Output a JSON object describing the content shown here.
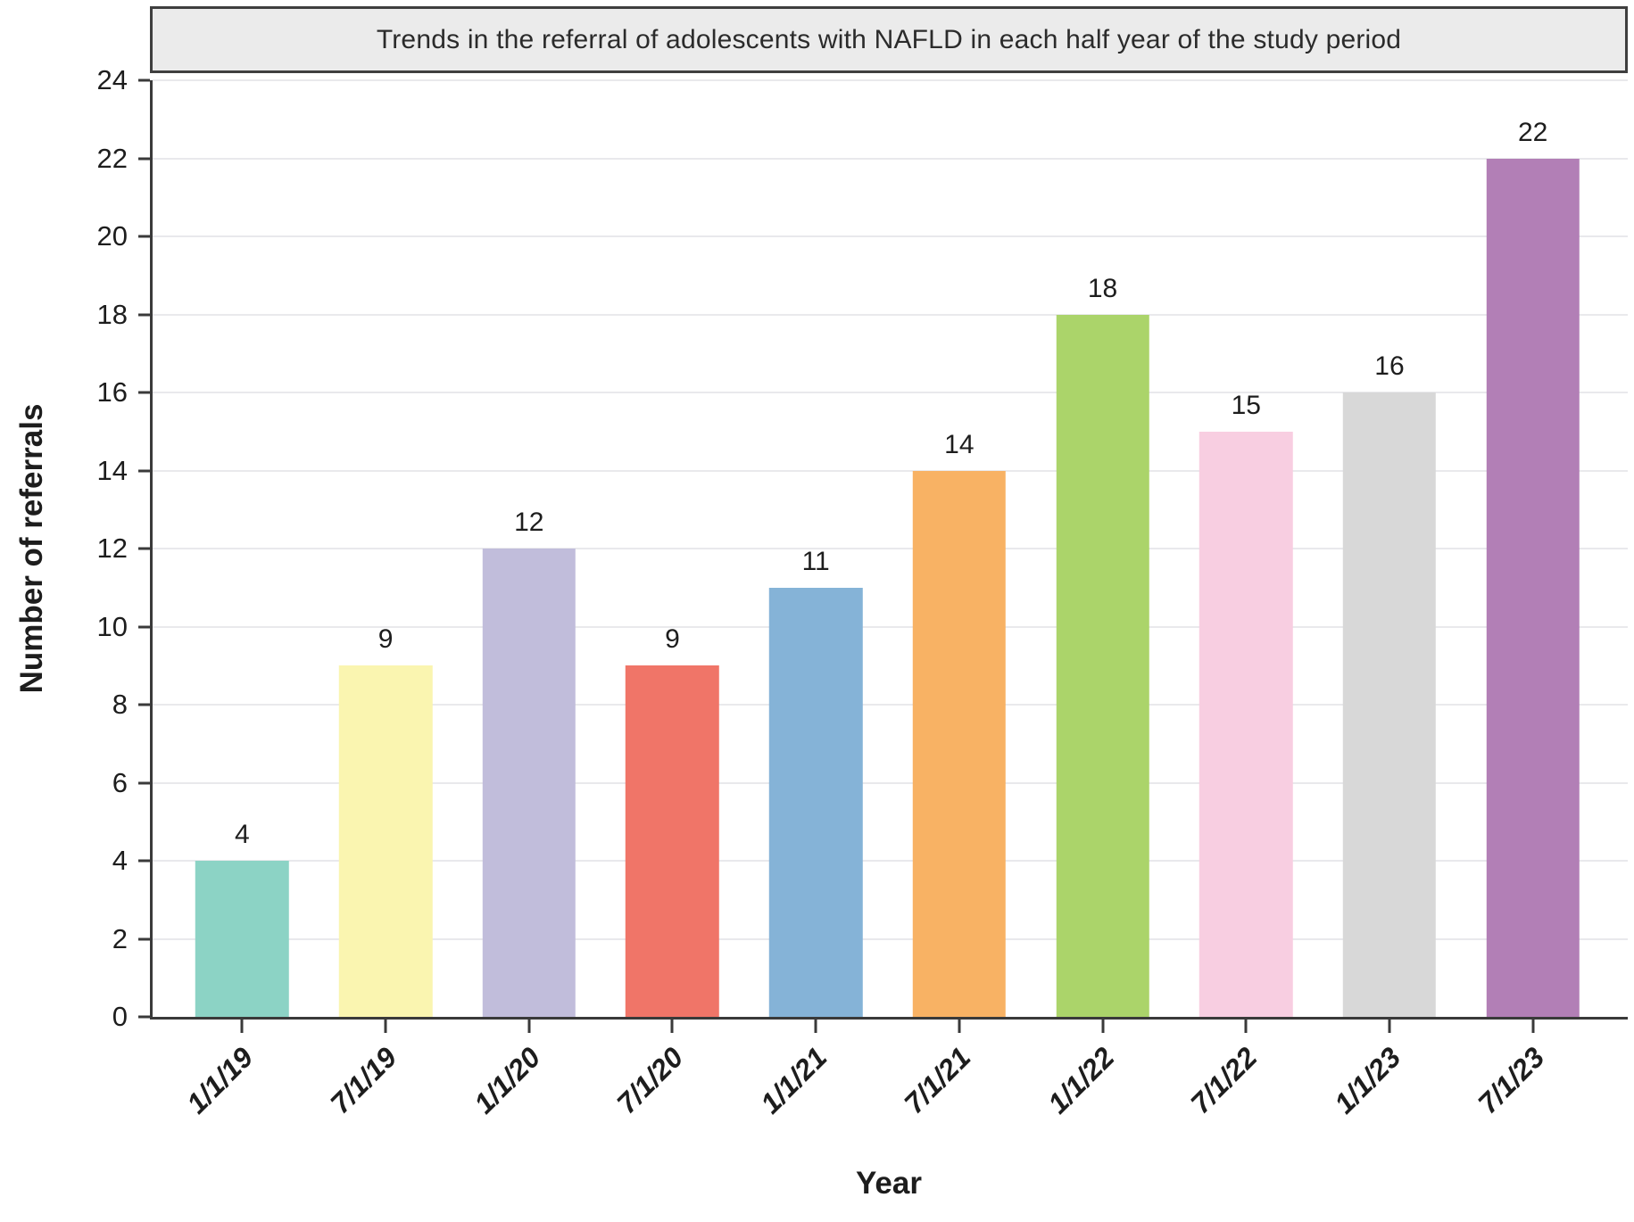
{
  "chart_data": {
    "type": "bar",
    "title": "Trends in the referral of adolescents with NAFLD in each half year of the study period",
    "xlabel": "Year",
    "ylabel": "Number of referrals",
    "categories": [
      "1/1/19",
      "7/1/19",
      "1/1/20",
      "7/1/20",
      "1/1/21",
      "7/1/21",
      "1/1/22",
      "7/1/22",
      "1/1/23",
      "7/1/23"
    ],
    "values": [
      4,
      9,
      12,
      9,
      11,
      14,
      18,
      15,
      16,
      22
    ],
    "value_labels": [
      "4",
      "9",
      "12",
      "9",
      "11",
      "14",
      "18",
      "15",
      "16",
      "22"
    ],
    "bar_colors": [
      "#8cd3c5",
      "#faf5b0",
      "#c1bddb",
      "#f07568",
      "#85b3d7",
      "#f8b264",
      "#abd46a",
      "#f8cee1",
      "#d8d8d8",
      "#b27fb6"
    ],
    "ylim": [
      0,
      24
    ],
    "ytick_step": 2,
    "yticks": [
      0,
      2,
      4,
      6,
      8,
      10,
      12,
      14,
      16,
      18,
      20,
      22,
      24
    ],
    "grid": "horizontal gridlines at every y tick",
    "legend": "none",
    "theme": {
      "axis_color": "#3a3a3a",
      "grid_color": "#e9e9ec",
      "text_color": "#1d1d1d",
      "title_box_bg": "#ebebeb",
      "title_box_border": "#3f3f3f",
      "background": "#ffffff"
    }
  }
}
